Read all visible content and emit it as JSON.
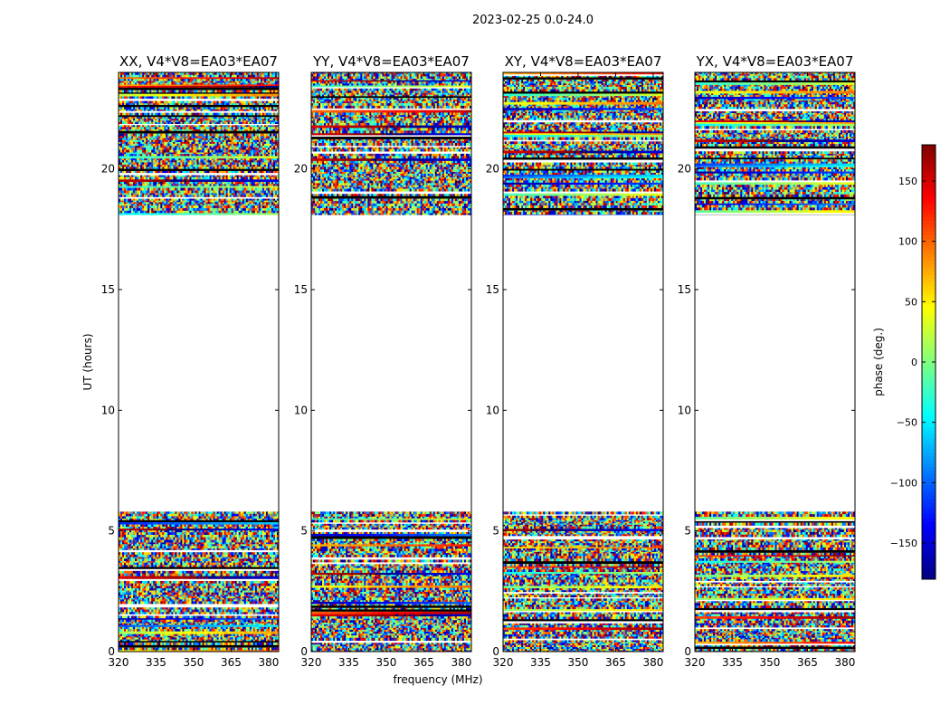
{
  "chart_data": {
    "type": "heatmap",
    "suptitle": "2023-02-25 0.0-24.0",
    "xlabel": "frequency (MHz)",
    "ylabel": "UT (hours)",
    "xlim": [
      320,
      384
    ],
    "ylim": [
      0,
      24
    ],
    "xticks": [
      320,
      335,
      350,
      365,
      380
    ],
    "xtick_labels": [
      "320",
      "335",
      "350",
      "365",
      "380"
    ],
    "yticks": [
      0,
      5,
      10,
      15,
      20
    ],
    "ytick_labels": [
      "0",
      "5",
      "10",
      "15",
      "20"
    ],
    "data_time_ranges": [
      [
        0,
        5.8
      ],
      [
        18.1,
        24
      ]
    ],
    "gap_time_range": [
      5.8,
      18.1
    ],
    "panels": [
      {
        "title": "XX, V4*V8=EA03*EA07",
        "pol": "XX"
      },
      {
        "title": "YY, V4*V8=EA03*EA07",
        "pol": "YY"
      },
      {
        "title": "XY, V4*V8=EA03*EA07",
        "pol": "XY"
      },
      {
        "title": "YX, V4*V8=EA03*EA07",
        "pol": "YX"
      }
    ],
    "colorbar": {
      "label": "phase (deg.)",
      "vmin": -180,
      "vmax": 180,
      "colormap": "jet",
      "ticks": [
        -150,
        -100,
        -50,
        0,
        50,
        100,
        150
      ],
      "tick_labels": [
        "−150",
        "−100",
        "−50",
        "0",
        "50",
        "100",
        "150"
      ]
    }
  }
}
